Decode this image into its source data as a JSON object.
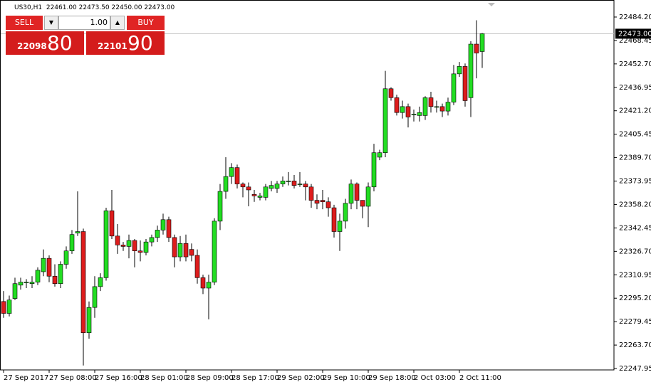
{
  "header": {
    "symbol": "US30,H1",
    "values": [
      "22461.00",
      "22473.50",
      "22450.00",
      "22473.00"
    ]
  },
  "trade_panel": {
    "sell": "SELL",
    "buy": "BUY",
    "lot": "1.00",
    "sell_big": "22098",
    "sell_small": "80",
    "buy_big": "22101",
    "buy_small": "90"
  },
  "chart_data": {
    "type": "candlestick",
    "categories": [
      "27 Sep 2017",
      null,
      null,
      null,
      null,
      null,
      null,
      null,
      "27 Sep 08:00",
      null,
      null,
      null,
      null,
      null,
      null,
      null,
      "27 Sep 16:00",
      null,
      null,
      null,
      null,
      null,
      null,
      null,
      "28 Sep 01:00",
      null,
      null,
      null,
      null,
      null,
      null,
      null,
      "28 Sep 09:00",
      null,
      null,
      null,
      null,
      null,
      null,
      null,
      "28 Sep 17:00",
      null,
      null,
      null,
      null,
      null,
      null,
      null,
      "29 Sep 02:00",
      null,
      null,
      null,
      null,
      null,
      null,
      null,
      "29 Sep 10:00",
      null,
      null,
      null,
      null,
      null,
      null,
      null,
      "29 Sep 18:00",
      null,
      null,
      null,
      null,
      null,
      null,
      null,
      "2 Oct 03:00",
      null,
      null,
      null,
      null,
      null,
      null,
      null,
      "2 Oct 11:00",
      null,
      null,
      null,
      null
    ],
    "open": [
      22293,
      22285,
      22295,
      22304,
      22306,
      22305,
      22306,
      22313,
      22322,
      22310,
      22305,
      22318,
      22327,
      22339,
      22340,
      22272,
      22289,
      22303,
      22309,
      22354,
      22337,
      22331,
      22330,
      22334,
      22327,
      22326,
      22333,
      22336,
      22341,
      22348,
      22336,
      22323,
      22332,
      22328,
      22324,
      22309,
      22302,
      22306,
      22347,
      22367,
      22377,
      22383,
      22372,
      22370,
      22365,
      22363,
      22363,
      22369,
      22369,
      22372,
      22374,
      22374,
      22372,
      22372,
      22370,
      22361,
      22361,
      22360,
      22356,
      22340,
      22347,
      22359,
      22372,
      22361,
      22357,
      22370,
      22390,
      22393,
      22436,
      22430,
      22420,
      22424,
      22419,
      22418,
      22418,
      22430,
      22424,
      22424,
      22421,
      22427,
      22446,
      22451,
      22430,
      22466,
      22461
    ],
    "high": [
      22300,
      22297,
      22309,
      22309,
      22308,
      22310,
      22316,
      22328,
      22324,
      22318,
      22320,
      22330,
      22341,
      22367,
      22342,
      22293,
      22310,
      22312,
      22356,
      22368,
      22345,
      22333,
      22338,
      22335,
      22334,
      22335,
      22338,
      22344,
      22352,
      22350,
      22338,
      22337,
      22338,
      22332,
      22328,
      22311,
      22311,
      22349,
      22372,
      22390,
      22386,
      22385,
      22373,
      22373,
      22368,
      22366,
      22372,
      22374,
      22374,
      22377,
      22380,
      22378,
      22380,
      22374,
      22372,
      22365,
      22368,
      22363,
      22358,
      22352,
      22362,
      22375,
      22373,
      22361,
      22373,
      22399,
      22395,
      22448,
      22437,
      22432,
      22428,
      22426,
      22422,
      22424,
      22431,
      22434,
      22428,
      22426,
      22430,
      22452,
      22454,
      22453,
      22468,
      22482,
      22473.5
    ],
    "low": [
      22282,
      22283,
      22294,
      22301,
      22302,
      22302,
      22304,
      22310,
      22306,
      22303,
      22302,
      22315,
      22325,
      22337,
      22250,
      22268,
      22282,
      22300,
      22307,
      22335,
      22325,
      22327,
      22322,
      22316,
      22320,
      22324,
      22330,
      22333,
      22338,
      22333,
      22316,
      22320,
      22320,
      22320,
      22305,
      22298,
      22281,
      22304,
      22341,
      22362,
      22372,
      22369,
      22363,
      22357,
      22360,
      22361,
      22361,
      22367,
      22366,
      22370,
      22371,
      22369,
      22370,
      22361,
      22356,
      22355,
      22355,
      22350,
      22336,
      22327,
      22342,
      22355,
      22355,
      22349,
      22343,
      22367,
      22388,
      22390,
      22428,
      22418,
      22416,
      22410,
      22414,
      22414,
      22415,
      22420,
      22420,
      22417,
      22418,
      22425,
      22444,
      22424,
      22417,
      22443,
      22450
    ],
    "close": [
      22285,
      22294,
      22305,
      22306,
      22306,
      22306,
      22314,
      22322,
      22310,
      22305,
      22318,
      22327,
      22338,
      22340,
      22272,
      22289,
      22303,
      22309,
      22354,
      22337,
      22331,
      22330,
      22334,
      22327,
      22326,
      22333,
      22336,
      22341,
      22348,
      22336,
      22323,
      22332,
      22323,
      22324,
      22309,
      22302,
      22306,
      22347,
      22367,
      22377,
      22383,
      22372,
      22370,
      22368,
      22364,
      22364,
      22370,
      22371,
      22372,
      22374,
      22374,
      22371,
      22372,
      22370,
      22361,
      22359,
      22360,
      22356,
      22340,
      22347,
      22359,
      22372,
      22361,
      22357,
      22370,
      22393,
      22393,
      22436,
      22430,
      22420,
      22424,
      22417,
      22419,
      22420,
      22430,
      22424,
      22424,
      22421,
      22427,
      22446,
      22451,
      22428,
      22466,
      22460,
      22473
    ],
    "up_color": "#22dd22",
    "down_color": "#dd1c1c",
    "last_price": {
      "value": 22473.0,
      "label": "22473.00"
    },
    "ylim": [
      22247,
      22494.7
    ],
    "yticks": [
      {
        "value": 22484.2,
        "label": "22484.20"
      },
      {
        "value": 22468.45,
        "label": "22468.45"
      },
      {
        "value": 22452.7,
        "label": "22452.70"
      },
      {
        "value": 22436.95,
        "label": "22436.95"
      },
      {
        "value": 22421.2,
        "label": "22421.20"
      },
      {
        "value": 22405.45,
        "label": "22405.45"
      },
      {
        "value": 22389.7,
        "label": "22389.70"
      },
      {
        "value": 22373.95,
        "label": "22373.95"
      },
      {
        "value": 22358.2,
        "label": "22358.20"
      },
      {
        "value": 22342.45,
        "label": "22342.45"
      },
      {
        "value": 22326.7,
        "label": "22326.70"
      },
      {
        "value": 22310.95,
        "label": "22310.95"
      },
      {
        "value": 22295.2,
        "label": "22295.20"
      },
      {
        "value": 22279.45,
        "label": "22279.45"
      },
      {
        "value": 22263.7,
        "label": "22263.70"
      },
      {
        "value": 22247.95,
        "label": "22247.95"
      }
    ],
    "grid": false
  }
}
